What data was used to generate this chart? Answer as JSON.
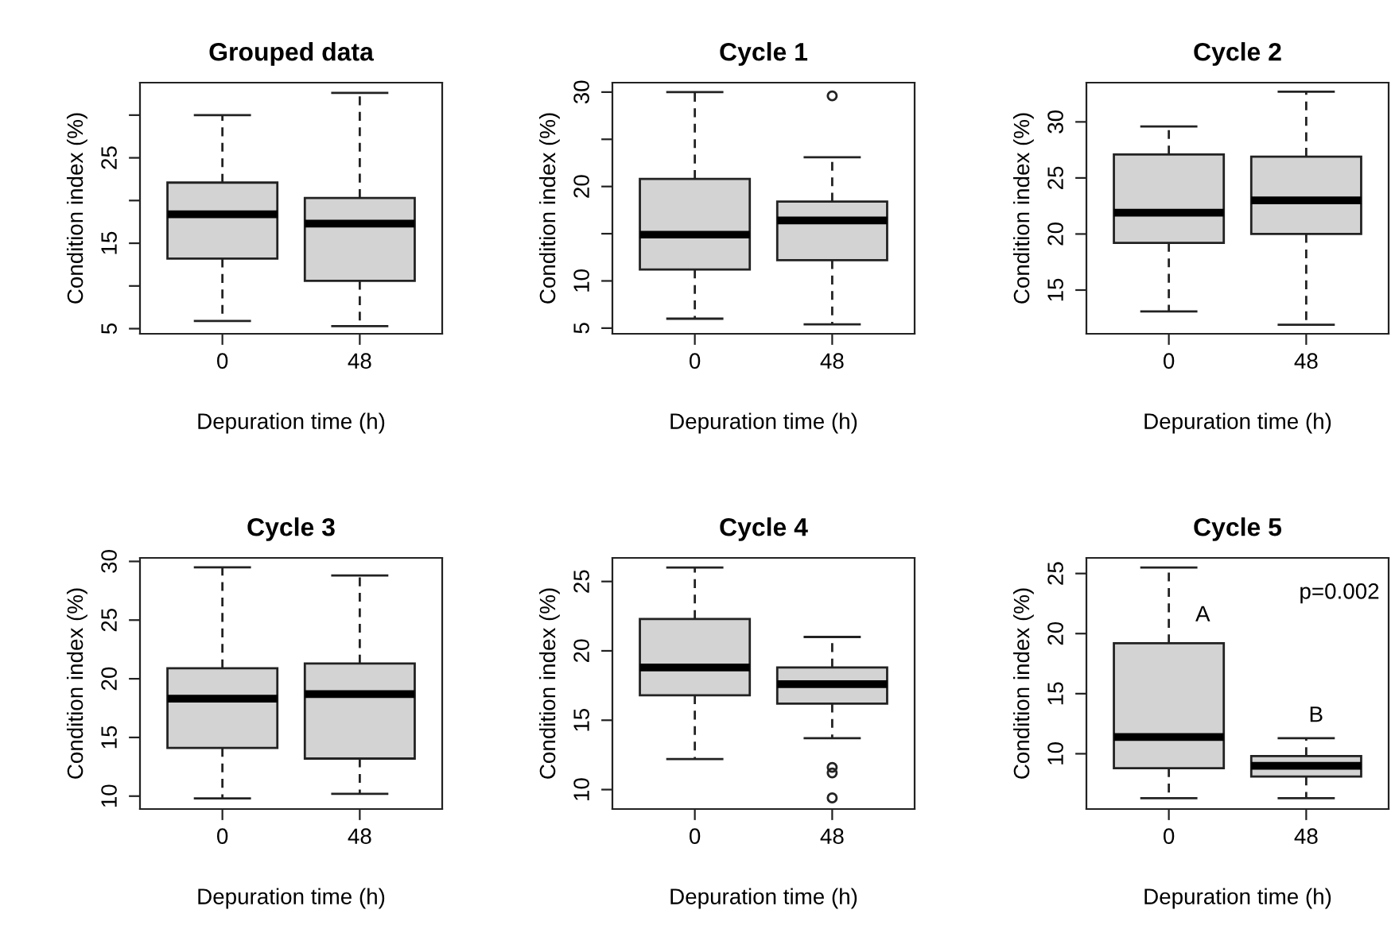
{
  "chart_data": [
    {
      "type": "box",
      "title": "Grouped data",
      "xlabel": "Depuration time (h)",
      "ylabel": "Condition index (%)",
      "categories": [
        "0",
        "48"
      ],
      "color": "#d3d3d3",
      "ylim": [
        4.4,
        33.8
      ],
      "yticks": [
        5,
        {
          "value": 10,
          "label": null
        },
        15,
        {
          "value": 20,
          "label": null
        },
        25,
        {
          "value": 30,
          "label": null
        }
      ],
      "boxes": [
        {
          "low": 5.9,
          "q1": 13.2,
          "median": 18.4,
          "q3": 22.1,
          "high": 30
        },
        {
          "low": 5.3,
          "q1": 10.6,
          "median": 17.3,
          "q3": 20.3,
          "high": 32.6
        }
      ]
    },
    {
      "type": "box",
      "title": "Cycle 1",
      "xlabel": "Depuration time (h)",
      "ylabel": "Condition index (%)",
      "categories": [
        "0",
        "48"
      ],
      "color": "#d3d3d3",
      "ylim": [
        4.4,
        31.0
      ],
      "yticks": [
        5,
        10,
        20,
        {
          "value": 25,
          "label": null
        },
        30,
        {
          "value": 15,
          "label": null
        }
      ],
      "boxes": [
        {
          "low": 6.0,
          "q1": 11.2,
          "median": 14.9,
          "q3": 20.8,
          "high": 30
        },
        {
          "low": 5.4,
          "q1": 12.2,
          "median": 16.4,
          "q3": 18.4,
          "high": 23.1,
          "outliers": [
            29.6
          ]
        }
      ]
    },
    {
      "type": "box",
      "title": "Cycle 2",
      "xlabel": "Depuration time (h)",
      "ylabel": "Condition index (%)",
      "categories": [
        "0",
        "48"
      ],
      "color": "#d3d3d3",
      "ylim": [
        11.1,
        33.5
      ],
      "yticks": [
        15,
        20,
        25,
        30
      ],
      "boxes": [
        {
          "low": 13.1,
          "q1": 19.2,
          "median": 21.9,
          "q3": 27.1,
          "high": 29.6
        },
        {
          "low": 11.9,
          "q1": 20.0,
          "median": 23.0,
          "q3": 26.9,
          "high": 32.7
        }
      ]
    },
    {
      "type": "box",
      "title": "Cycle 3",
      "xlabel": "Depuration time (h)",
      "ylabel": "Condition index (%)",
      "categories": [
        "0",
        "48"
      ],
      "color": "#d3d3d3",
      "ylim": [
        8.9,
        30.3
      ],
      "yticks": [
        10,
        15,
        20,
        25,
        30
      ],
      "boxes": [
        {
          "low": 9.8,
          "q1": 14.1,
          "median": 18.3,
          "q3": 20.9,
          "high": 29.5
        },
        {
          "low": 10.2,
          "q1": 13.2,
          "median": 18.7,
          "q3": 21.3,
          "high": 28.8
        }
      ]
    },
    {
      "type": "box",
      "title": "Cycle 4",
      "xlabel": "Depuration time (h)",
      "ylabel": "Condition index (%)",
      "categories": [
        "0",
        "48"
      ],
      "color": "#d3d3d3",
      "ylim": [
        8.6,
        26.7
      ],
      "yticks": [
        10,
        15,
        20,
        25
      ],
      "boxes": [
        {
          "low": 12.2,
          "q1": 16.8,
          "median": 18.8,
          "q3": 22.3,
          "high": 26.0
        },
        {
          "low": 13.7,
          "q1": 16.2,
          "median": 17.6,
          "q3": 18.8,
          "high": 21.0,
          "outliers": [
            11.6,
            11.2,
            9.4
          ]
        }
      ]
    },
    {
      "type": "box",
      "title": "Cycle 5",
      "xlabel": "Depuration time (h)",
      "ylabel": "Condition index (%)",
      "categories": [
        "0",
        "48"
      ],
      "color": "#d3d3d3",
      "ylim": [
        5.4,
        26.3
      ],
      "yticks": [
        10,
        15,
        20,
        25
      ],
      "boxes": [
        {
          "low": 6.3,
          "q1": 8.8,
          "median": 11.4,
          "q3": 19.2,
          "high": 25.5
        },
        {
          "low": 6.3,
          "q1": 8.1,
          "median": 9.0,
          "q3": 9.8,
          "high": 11.3
        }
      ],
      "annotations": [
        "A",
        "B",
        "p=0.002"
      ]
    }
  ]
}
